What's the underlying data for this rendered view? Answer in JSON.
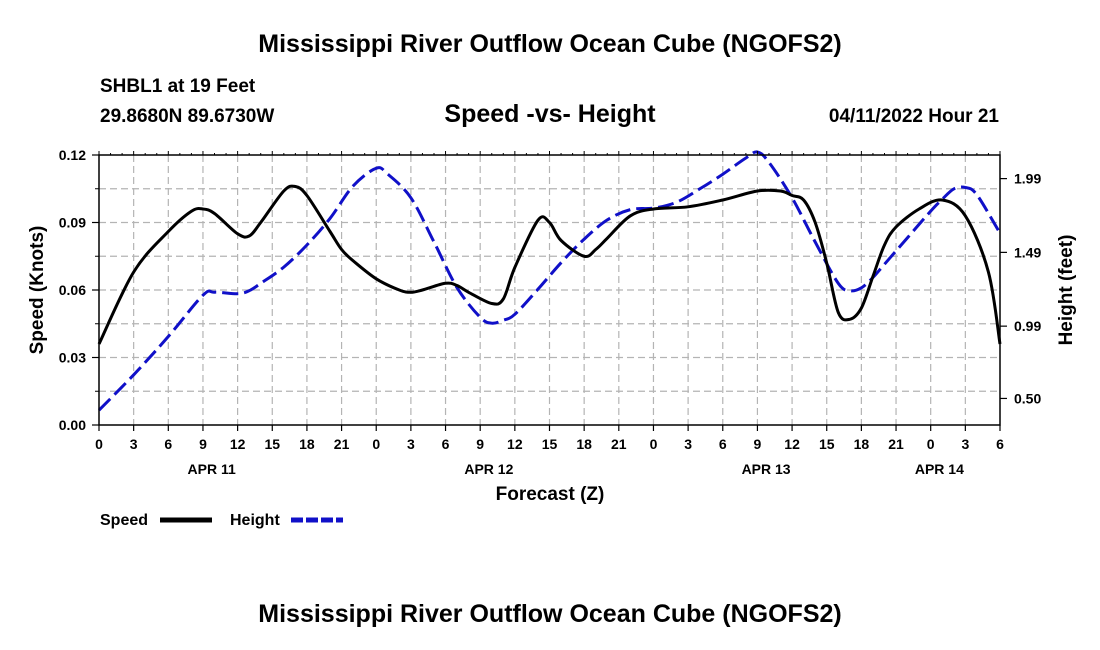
{
  "page": {
    "title_top": "Mississippi River Outflow Ocean Cube (NGOFS2)",
    "title_bottom": "Mississippi River Outflow Ocean Cube (NGOFS2)",
    "station": "SHBL1 at 19 Feet",
    "coordinates": "29.8680N  89.6730W",
    "subtitle": "Speed -vs- Height",
    "datetime": "04/11/2022 Hour 21"
  },
  "chart_data": {
    "type": "line",
    "xlabel": "Forecast (Z)",
    "ylabel_left": "Speed (Knots)",
    "ylabel_right": "Height (feet)",
    "xlim": [
      0,
      78
    ],
    "ylim_left": [
      0,
      0.12
    ],
    "ylim_right": [
      0.32,
      2.15
    ],
    "grid": true,
    "x_tick_values": [
      0,
      3,
      6,
      9,
      12,
      15,
      18,
      21,
      24,
      27,
      30,
      33,
      36,
      39,
      42,
      45,
      48,
      51,
      54,
      57,
      60,
      63,
      66,
      69,
      72,
      75,
      78
    ],
    "x_tick_labels": [
      "0",
      "3",
      "6",
      "9",
      "12",
      "15",
      "18",
      "21",
      "0",
      "3",
      "6",
      "9",
      "12",
      "15",
      "18",
      "21",
      "0",
      "3",
      "6",
      "9",
      "12",
      "15",
      "18",
      "21",
      "0",
      "3",
      "6"
    ],
    "date_labels": [
      {
        "label": "APR 11",
        "x": 9.75
      },
      {
        "label": "APR 12",
        "x": 33.75
      },
      {
        "label": "APR 13",
        "x": 57.75
      },
      {
        "label": "APR 14",
        "x": 72.75
      }
    ],
    "left_ticks": [
      {
        "value": 0,
        "label": "0.00"
      },
      {
        "value": 0.03,
        "label": "0.03"
      },
      {
        "value": 0.06,
        "label": "0.06"
      },
      {
        "value": 0.09,
        "label": "0.09"
      },
      {
        "value": 0.12,
        "label": "0.12"
      }
    ],
    "right_ticks": [
      {
        "value": 0.5,
        "label": "0.50"
      },
      {
        "value": 0.99,
        "label": "0.99"
      },
      {
        "value": 1.49,
        "label": "1.49"
      },
      {
        "value": 1.99,
        "label": "1.99"
      }
    ],
    "series": [
      {
        "name": "Speed",
        "axis": "left",
        "color": "#000000",
        "dash": "solid",
        "x": [
          0,
          3,
          6,
          8,
          9,
          10,
          12,
          13,
          14,
          16,
          17,
          18,
          20,
          21,
          22,
          24,
          26,
          27,
          28,
          30,
          31,
          32,
          34,
          35,
          36,
          38,
          39,
          40,
          42,
          43,
          44,
          46,
          48,
          51,
          54,
          57,
          59,
          60,
          61,
          62,
          63,
          64,
          65,
          66,
          67,
          68,
          69,
          71,
          73,
          75,
          77,
          78
        ],
        "y": [
          0.036,
          0.068,
          0.086,
          0.095,
          0.096,
          0.094,
          0.085,
          0.084,
          0.09,
          0.104,
          0.106,
          0.102,
          0.086,
          0.078,
          0.073,
          0.065,
          0.06,
          0.059,
          0.06,
          0.063,
          0.062,
          0.059,
          0.054,
          0.056,
          0.07,
          0.091,
          0.09,
          0.082,
          0.075,
          0.078,
          0.083,
          0.093,
          0.096,
          0.097,
          0.1,
          0.104,
          0.104,
          0.102,
          0.1,
          0.09,
          0.072,
          0.05,
          0.047,
          0.052,
          0.066,
          0.08,
          0.088,
          0.096,
          0.1,
          0.093,
          0.068,
          0.036
        ]
      },
      {
        "name": "Height",
        "axis": "right",
        "color": "#1010c8",
        "dash": "dashed",
        "x": [
          0,
          3,
          6,
          9,
          10,
          12,
          13,
          14,
          16,
          18,
          20,
          22,
          24,
          25,
          27,
          29,
          31,
          33,
          34,
          35,
          36,
          38,
          40,
          42,
          44,
          46,
          48,
          50,
          52,
          54,
          56,
          57,
          58,
          60,
          62,
          64,
          65,
          66,
          67,
          68,
          70,
          72,
          73,
          74,
          75,
          76,
          78
        ],
        "y": [
          0.42,
          0.66,
          0.92,
          1.2,
          1.22,
          1.21,
          1.23,
          1.28,
          1.39,
          1.54,
          1.72,
          1.94,
          2.06,
          2.02,
          1.86,
          1.56,
          1.25,
          1.05,
          1.01,
          1.03,
          1.07,
          1.24,
          1.42,
          1.58,
          1.71,
          1.78,
          1.79,
          1.83,
          1.92,
          2.02,
          2.13,
          2.17,
          2.1,
          1.86,
          1.56,
          1.28,
          1.23,
          1.25,
          1.32,
          1.41,
          1.59,
          1.77,
          1.85,
          1.92,
          1.93,
          1.88,
          1.62
        ]
      }
    ],
    "legend": [
      {
        "label": "Speed",
        "color": "#000000",
        "dash": "solid"
      },
      {
        "label": "Height",
        "color": "#1010c8",
        "dash": "dashed"
      }
    ]
  }
}
